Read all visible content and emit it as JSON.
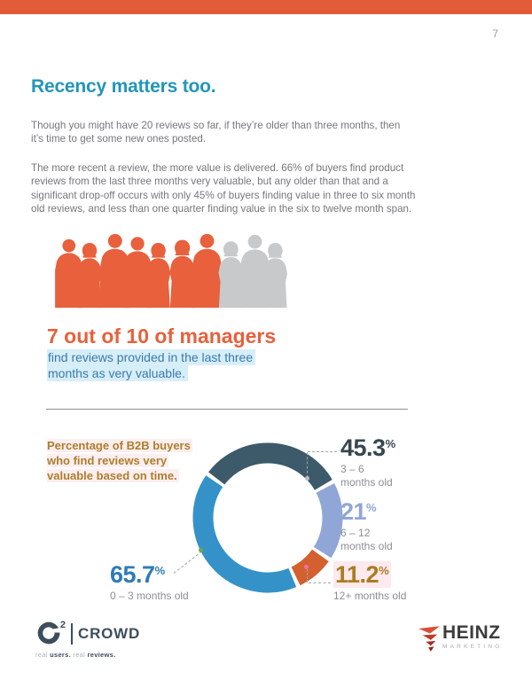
{
  "page": {
    "number": "7"
  },
  "header": {
    "title": "Recency matters too."
  },
  "intro": {
    "para1": "Though you might have 20 reviews so far, if they’re older than three months, then it’s time to get some new ones posted.",
    "para2": "The more recent a review, the more value is delivered. 66% of buyers find product reviews from the last three months very valuable, but any older than that and a significant drop-off occurs with only 45% of buyers finding value in three to six month old reviews, and less than one quarter finding value in the six to twelve month span."
  },
  "infographic": {
    "stat_title": "7 out of 10 of managers",
    "stat_sub_line1": "find reviews provided in the last three",
    "stat_sub_line2": "months as very valuable.",
    "people": {
      "total": 10,
      "highlighted": 7,
      "highlight_color": "#e8603c",
      "muted_color": "#c7c9cb"
    }
  },
  "chart": {
    "label_line1": "Percentage of B2B buyers",
    "label_line2": "who find reviews very",
    "label_line3": "valuable based on time."
  },
  "chart_data": {
    "type": "donut",
    "title": "Percentage of B2B buyers who find reviews very valuable based on time.",
    "unit": "%",
    "legend_position": "around",
    "segments": [
      {
        "label": "3 – 6 months old",
        "value": 45.3,
        "display": "45.3",
        "color": "#3d5a6a",
        "start_deg": -54,
        "end_deg": 61
      },
      {
        "label": "6 – 12 months old",
        "value": 21,
        "display": "21",
        "color": "#8fa6d6",
        "start_deg": 61,
        "end_deg": 124
      },
      {
        "label": "12+ months old",
        "value": 11.2,
        "display": "11.2",
        "color": "#d4602f",
        "start_deg": 124,
        "end_deg": 156
      },
      {
        "label": "0 – 3 months old",
        "value": 65.7,
        "display": "65.7",
        "color": "#3492c9",
        "start_deg": 156,
        "end_deg": 306
      }
    ]
  },
  "labels": {
    "seg1": {
      "line1": "3 – 6",
      "line2": "months old"
    },
    "seg2": {
      "line1": "6 – 12",
      "line2": "months old"
    },
    "seg3": {
      "line1": "12+ months old"
    },
    "seg4": {
      "line1": "0 – 3 months old"
    }
  },
  "footer": {
    "g2": {
      "sup": "2",
      "name": "CROWD",
      "tag_real1": "real",
      "tag_users": "users.",
      "tag_real2": "real",
      "tag_reviews": "reviews."
    },
    "heinz": {
      "name": "HEINZ",
      "sub": "MARKETING"
    }
  },
  "colors": {
    "accent_bar": "#e25c3a",
    "title_blue": "#2196b8",
    "stat_orange": "#e8603c",
    "sub_blue": "#3c79ad",
    "sub_highlight": "#d6eef8",
    "label_gold": "#ad7e2b",
    "label_highlight": "#fdeef0",
    "seg_navy": "#3d5a6a",
    "seg_periwinkle": "#8fa6d6",
    "seg_orange": "#d4602f",
    "seg_blue": "#3492c9",
    "body_gray": "#76777a"
  }
}
